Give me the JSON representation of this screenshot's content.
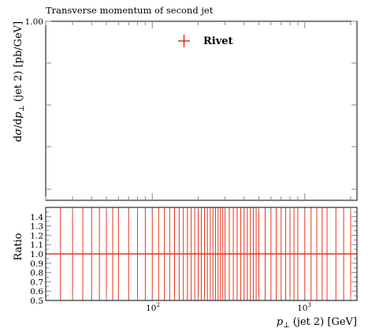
{
  "chart_data": {
    "type": "scatter",
    "title": "Transverse momentum of second jet",
    "xlabel_html": "p⊥ (jet 2) [GeV]",
    "xlabel": {
      "var": "p",
      "sub": "⊥",
      "rest": " (jet 2) [GeV]"
    },
    "ylabel": {
      "pre": "d",
      "sigma": "σ",
      "mid": "/d",
      "var": "p",
      "sub": "⊥",
      "rest": " (jet 2) [pb/GeV]"
    },
    "xscale": "log",
    "xlim": [
      20,
      2200
    ],
    "main_ylim": [
      0,
      1.0
    ],
    "main_ytick_labels": [
      "1.00"
    ],
    "legend": {
      "entries": [
        {
          "name": "Rivet",
          "color": "#e8361e",
          "marker": "plus"
        }
      ],
      "placement": "top-center"
    },
    "ratio": {
      "ylabel": "Ratio",
      "ylim": [
        0.5,
        1.5
      ],
      "yticks": [
        "0.5",
        "0.6",
        "0.7",
        "0.8",
        "0.9",
        "1.0",
        "1.1",
        "1.2",
        "1.3",
        "1.4"
      ],
      "reference_value": 1.0,
      "bin_edges": [
        20,
        25,
        30,
        35,
        40,
        45,
        50,
        55,
        60,
        70,
        80,
        90,
        100,
        110,
        120,
        130,
        140,
        150,
        160,
        170,
        180,
        190,
        200,
        210,
        220,
        230,
        240,
        250,
        260,
        270,
        280,
        290,
        300,
        320,
        340,
        360,
        380,
        400,
        420,
        440,
        460,
        480,
        500,
        550,
        600,
        650,
        700,
        750,
        800,
        850,
        900,
        1000,
        1100,
        1200,
        1300,
        1400,
        1600,
        1800,
        2000,
        2200
      ],
      "error_band": [
        0.5,
        1.5
      ]
    },
    "xtick_labels": [
      {
        "base": "10",
        "exp": "2",
        "value": 100
      },
      {
        "base": "10",
        "exp": "3",
        "value": 1000
      }
    ],
    "colors": {
      "series": "#e8361e",
      "frame": "#000000",
      "ticks": "#888888"
    }
  }
}
